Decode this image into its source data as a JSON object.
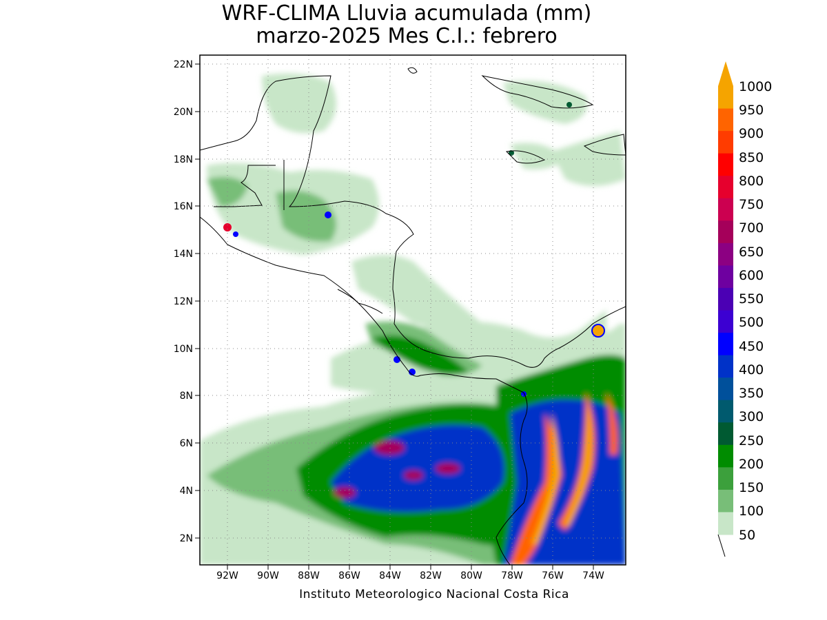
{
  "title": {
    "line1": "WRF-CLIMA Lluvia acumulada (mm)",
    "line2": "marzo-2025 Mes C.I.: febrero"
  },
  "credit": "Instituto Meteorologico Nacional Costa Rica",
  "axes": {
    "lat_labels": [
      "22N",
      "20N",
      "18N",
      "16N",
      "14N",
      "12N",
      "10N",
      "8N",
      "6N",
      "4N",
      "2N"
    ],
    "lon_labels": [
      "92W",
      "90W",
      "88W",
      "86W",
      "84W",
      "82W",
      "80W",
      "78W",
      "76W",
      "74W"
    ],
    "lat_values": [
      22,
      20,
      18,
      16,
      14,
      12,
      10,
      8,
      6,
      4,
      2
    ],
    "lon_values": [
      -92,
      -90,
      -88,
      -86,
      -84,
      -82,
      -80,
      -78,
      -76,
      -74
    ],
    "lon_range": [
      -93.2,
      -72.4
    ],
    "lat_range": [
      1.0,
      22.4
    ],
    "grid": true
  },
  "colorbar": {
    "labels": [
      "1000",
      "950",
      "900",
      "850",
      "800",
      "750",
      "700",
      "650",
      "600",
      "550",
      "500",
      "450",
      "400",
      "350",
      "300",
      "250",
      "200",
      "150",
      "100",
      "50"
    ],
    "colors": [
      "#f5a400",
      "#ff6400",
      "#ff3c00",
      "#ff0000",
      "#e6002d",
      "#cc0050",
      "#a5005a",
      "#8c0082",
      "#6e00a0",
      "#4b00b4",
      "#3c00d2",
      "#0000ff",
      "#0032c8",
      "#00509b",
      "#005a6e",
      "#005a32",
      "#008c00",
      "#3ca03c",
      "#78be78",
      "#c8e6c8"
    ],
    "extend_max": true
  }
}
